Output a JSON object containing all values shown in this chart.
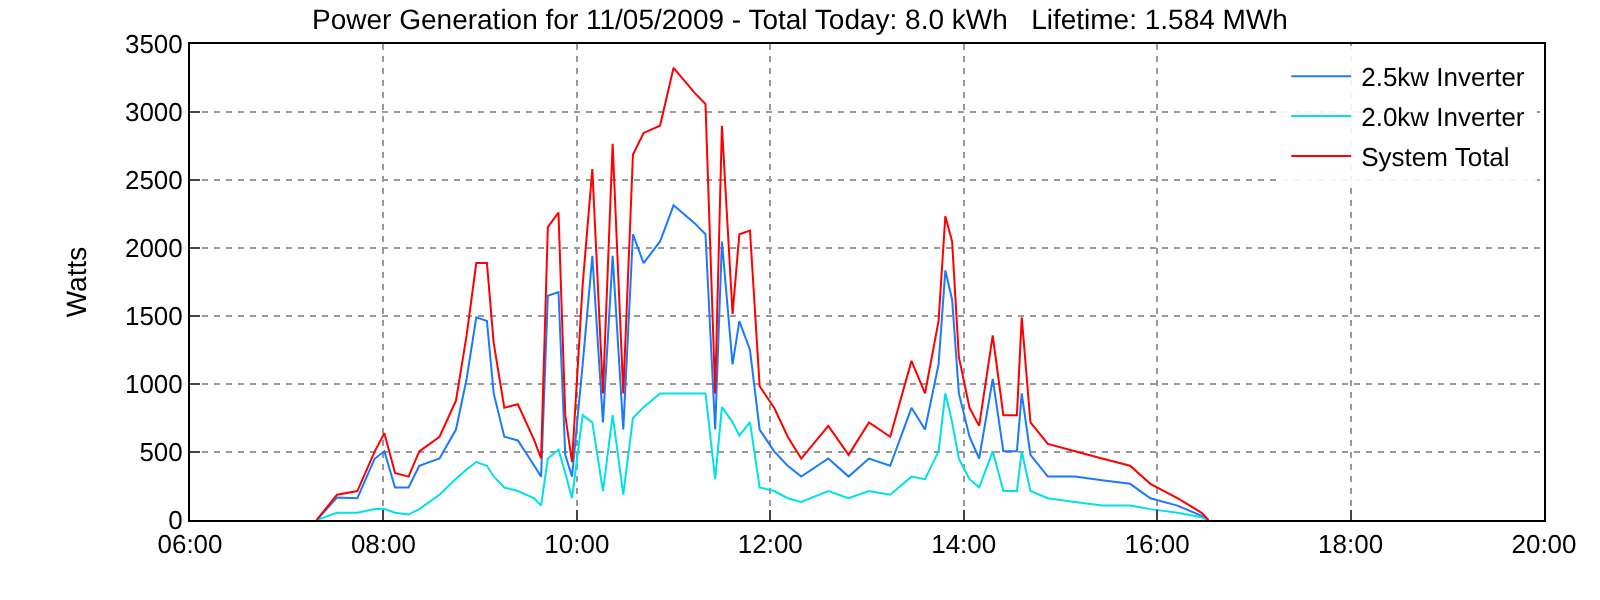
{
  "chart_data": {
    "type": "line",
    "title": "Power Generation for 11/05/2009 - Total Today: 8.0 kWh   Lifetime: 1.584 MWh",
    "ylabel": "Watts",
    "x": [
      7.31,
      7.52,
      7.73,
      7.91,
      8.01,
      8.12,
      8.26,
      8.37,
      8.58,
      8.75,
      8.86,
      8.96,
      9.07,
      9.14,
      9.25,
      9.39,
      9.56,
      9.63,
      9.7,
      9.81,
      9.88,
      9.95,
      10.06,
      10.16,
      10.27,
      10.37,
      10.48,
      10.58,
      10.69,
      10.86,
      11.0,
      11.22,
      11.33,
      11.43,
      11.5,
      11.61,
      11.68,
      11.79,
      11.89,
      12.04,
      12.18,
      12.32,
      12.6,
      12.81,
      13.02,
      13.24,
      13.46,
      13.6,
      13.74,
      13.81,
      13.88,
      13.95,
      14.06,
      14.16,
      14.3,
      14.41,
      14.55,
      14.6,
      14.69,
      14.87,
      15.15,
      15.43,
      15.72,
      15.93,
      16.21,
      16.46,
      16.53
    ],
    "series": [
      {
        "name": "2.5kw Inverter",
        "color": "#1a7aff",
        "values": [
          0,
          165,
          160,
          452,
          505,
          239,
          239,
          399,
          452,
          665,
          1037,
          1490,
          1463,
          931,
          612,
          585,
          399,
          319,
          1649,
          1676,
          479,
          319,
          1144,
          1942,
          718,
          1942,
          665,
          2101,
          1889,
          2048,
          2314,
          2181,
          2101,
          665,
          2048,
          1144,
          1463,
          1250,
          665,
          505,
          399,
          319,
          452,
          319,
          452,
          399,
          825,
          665,
          1144,
          1835,
          1622,
          931,
          612,
          452,
          1037,
          505,
          505,
          931,
          479,
          319,
          319,
          293,
          266,
          160,
          106,
          30,
          0
        ]
      },
      {
        "name": "2.0kw Inverter",
        "color": "#00e0e8",
        "values": [
          0,
          53,
          53,
          80,
          80,
          53,
          40,
          80,
          186,
          303,
          372,
          426,
          399,
          320,
          239,
          213,
          160,
          106,
          452,
          516,
          346,
          160,
          771,
          718,
          213,
          771,
          186,
          750,
          830,
          931,
          931,
          931,
          931,
          300,
          830,
          720,
          620,
          720,
          239,
          213,
          160,
          133,
          213,
          160,
          213,
          186,
          319,
          300,
          505,
          931,
          720,
          450,
          300,
          240,
          505,
          213,
          213,
          505,
          213,
          160,
          133,
          106,
          106,
          80,
          53,
          20,
          0
        ]
      },
      {
        "name": "System Total",
        "color": "#ff0000",
        "values": [
          0,
          186,
          213,
          505,
          638,
          346,
          319,
          505,
          612,
          878,
          1357,
          1889,
          1889,
          1303,
          825,
          851,
          585,
          452,
          2154,
          2261,
          771,
          426,
          1729,
          2580,
          931,
          2766,
          931,
          2687,
          2846,
          2899,
          3325,
          3139,
          3059,
          931,
          2899,
          1516,
          2101,
          2128,
          984,
          825,
          612,
          452,
          692,
          479,
          718,
          612,
          1170,
          931,
          1463,
          2234,
          2048,
          1197,
          825,
          692,
          1357,
          771,
          771,
          1490,
          718,
          559,
          505,
          452,
          399,
          266,
          160,
          53,
          0
        ]
      }
    ],
    "xlim": [
      6,
      20
    ],
    "xticks": [
      {
        "value": 6,
        "label": "06:00"
      },
      {
        "value": 8,
        "label": "08:00"
      },
      {
        "value": 10,
        "label": "10:00"
      },
      {
        "value": 12,
        "label": "12:00"
      },
      {
        "value": 14,
        "label": "14:00"
      },
      {
        "value": 16,
        "label": "16:00"
      },
      {
        "value": 18,
        "label": "18:00"
      },
      {
        "value": 20,
        "label": "20:00"
      }
    ],
    "ylim": [
      0,
      3500
    ],
    "yticks": [
      0,
      500,
      1000,
      1500,
      2000,
      2500,
      3000,
      3500
    ],
    "grid": true,
    "legend": "top right",
    "marker": "none",
    "line_style": "solid"
  }
}
